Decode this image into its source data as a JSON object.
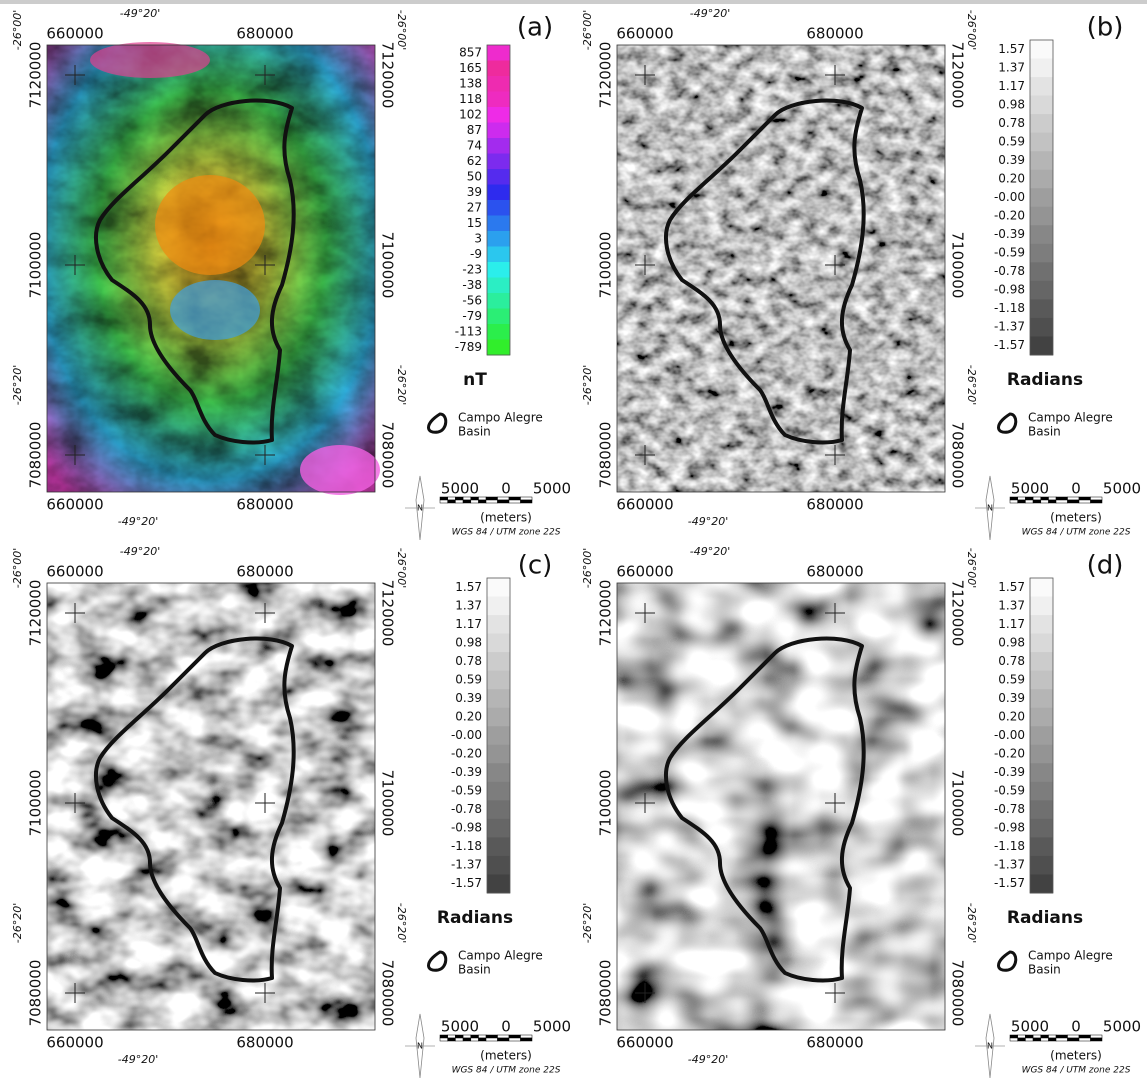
{
  "panels": [
    {
      "label": "(a)",
      "x_top": [
        "660000",
        "680000"
      ],
      "lon_top": "-49°20'",
      "x_bottom": [
        "660000",
        "680000"
      ],
      "lon_bottom": "-49°20'",
      "y_left": [
        "7120000",
        "7100000",
        "7080000"
      ],
      "lat_left": [
        "-26°00'",
        "-26°20'"
      ],
      "y_right": [
        "7120000",
        "7100000",
        "7080000"
      ],
      "lat_right": [
        "-26°00'",
        "-26°20'"
      ],
      "colorbar": {
        "labels": [
          "857",
          "165",
          "138",
          "118",
          "102",
          "87",
          "74",
          "62",
          "50",
          "39",
          "27",
          "15",
          "3",
          "-9",
          "-23",
          "-38",
          "-56",
          "-79",
          "-113",
          "-789"
        ],
        "unit": "nT"
      },
      "legend": [
        "Campo Alegre",
        "Basin"
      ],
      "scale": {
        "labels": [
          "5000",
          "0",
          "5000"
        ],
        "unit": "(meters)",
        "projection": "WGS 84 / UTM zone 22S"
      },
      "north": "N"
    },
    {
      "label": "(b)",
      "x_top": [
        "660000",
        "680000"
      ],
      "lon_top": "-49°20'",
      "x_bottom": [
        "660000",
        "680000"
      ],
      "lon_bottom": "-49°20'",
      "y_left": [
        "7120000",
        "7100000",
        "7080000"
      ],
      "lat_left": [
        "-26°00'",
        "-26°20'"
      ],
      "y_right": [
        "7120000",
        "7100000",
        "7080000"
      ],
      "lat_right": [
        "-26°00'",
        "-26°20'"
      ],
      "colorbar": {
        "labels": [
          "1.57",
          "1.37",
          "1.17",
          "0.98",
          "0.78",
          "0.59",
          "0.39",
          "0.20",
          "-0.00",
          "-0.20",
          "-0.39",
          "-0.59",
          "-0.78",
          "-0.98",
          "-1.18",
          "-1.37",
          "-1.57"
        ],
        "unit": "Radians"
      },
      "legend": [
        "Campo Alegre",
        "Basin"
      ],
      "scale": {
        "labels": [
          "5000",
          "0",
          "5000"
        ],
        "unit": "(meters)",
        "projection": "WGS 84 / UTM zone 22S"
      },
      "north": "N"
    },
    {
      "label": "(c)",
      "x_top": [
        "660000",
        "680000"
      ],
      "lon_top": "-49°20'",
      "x_bottom": [
        "660000",
        "680000"
      ],
      "lon_bottom": "-49°20'",
      "y_left": [
        "7120000",
        "7100000",
        "7080000"
      ],
      "lat_left": [
        "-26°00'",
        "-26°20'"
      ],
      "y_right": [
        "7120000",
        "7100000",
        "7080000"
      ],
      "lat_right": [
        "-26°00'",
        "-26°20'"
      ],
      "colorbar": {
        "labels": [
          "1.57",
          "1.37",
          "1.17",
          "0.98",
          "0.78",
          "0.59",
          "0.39",
          "0.20",
          "-0.00",
          "-0.20",
          "-0.39",
          "-0.59",
          "-0.78",
          "-0.98",
          "-1.18",
          "-1.37",
          "-1.57"
        ],
        "unit": "Radians"
      },
      "legend": [
        "Campo Alegre",
        "Basin"
      ],
      "scale": {
        "labels": [
          "5000",
          "0",
          "5000"
        ],
        "unit": "(meters)",
        "projection": "WGS 84 / UTM zone 22S"
      },
      "north": "N"
    },
    {
      "label": "(d)",
      "x_top": [
        "660000",
        "680000"
      ],
      "lon_top": "-49°20'",
      "x_bottom": [
        "660000",
        "680000"
      ],
      "lon_bottom": "-49°20'",
      "y_left": [
        "7120000",
        "7100000",
        "7080000"
      ],
      "lat_left": [
        "-26°00'",
        "-26°20'"
      ],
      "y_right": [
        "7120000",
        "7100000",
        "7080000"
      ],
      "lat_right": [
        "-26°00'",
        "-26°20'"
      ],
      "colorbar": {
        "labels": [
          "1.57",
          "1.37",
          "1.17",
          "0.98",
          "0.78",
          "0.59",
          "0.39",
          "0.20",
          "-0.00",
          "-0.20",
          "-0.39",
          "-0.59",
          "-0.78",
          "-0.98",
          "-1.18",
          "-1.37",
          "-1.57"
        ],
        "unit": "Radians"
      },
      "legend": [
        "Campo Alegre",
        "Basin"
      ],
      "scale": {
        "labels": [
          "5000",
          "0",
          "5000"
        ],
        "unit": "(meters)",
        "projection": "WGS 84 / UTM zone 22S"
      },
      "north": "N"
    }
  ]
}
